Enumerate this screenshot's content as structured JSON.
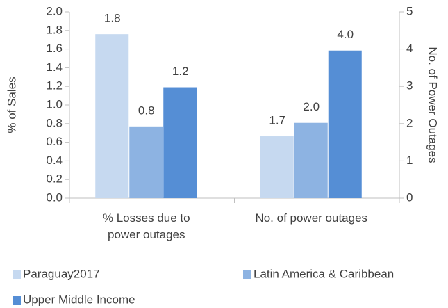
{
  "chart_data": {
    "type": "bar",
    "categories": [
      "% Losses due to power outages",
      "No. of power outages"
    ],
    "category_axes": [
      "y",
      "y2"
    ],
    "series": [
      {
        "name": "Paraguay2017",
        "color": "#c6d9f0",
        "values": [
          1.76,
          1.66
        ],
        "value_labels": [
          "1.8",
          "1.7"
        ]
      },
      {
        "name": "Latin America & Caribbean",
        "color": "#8db3e2",
        "values": [
          0.77,
          2.02
        ],
        "value_labels": [
          "0.8",
          "2.0"
        ]
      },
      {
        "name": "Upper Middle Income",
        "color": "#558ed5",
        "values": [
          1.19,
          3.96
        ],
        "value_labels": [
          "1.2",
          "4.0"
        ]
      }
    ],
    "ylabel": "% of Sales",
    "y2label": "No. of Power Outages",
    "ylim": [
      0,
      2
    ],
    "yticks": [
      {
        "value": 0,
        "label": "0.0"
      },
      0.2,
      0.4,
      0.6,
      0.8,
      {
        "value": 1,
        "label": "1.0"
      },
      1.2,
      1.4,
      1.6,
      1.8,
      {
        "value": 2,
        "label": "2.0"
      }
    ],
    "y2lim": [
      0,
      5
    ],
    "y2ticks": [
      0,
      1,
      2,
      3,
      4,
      5
    ],
    "legend": "bottom"
  }
}
